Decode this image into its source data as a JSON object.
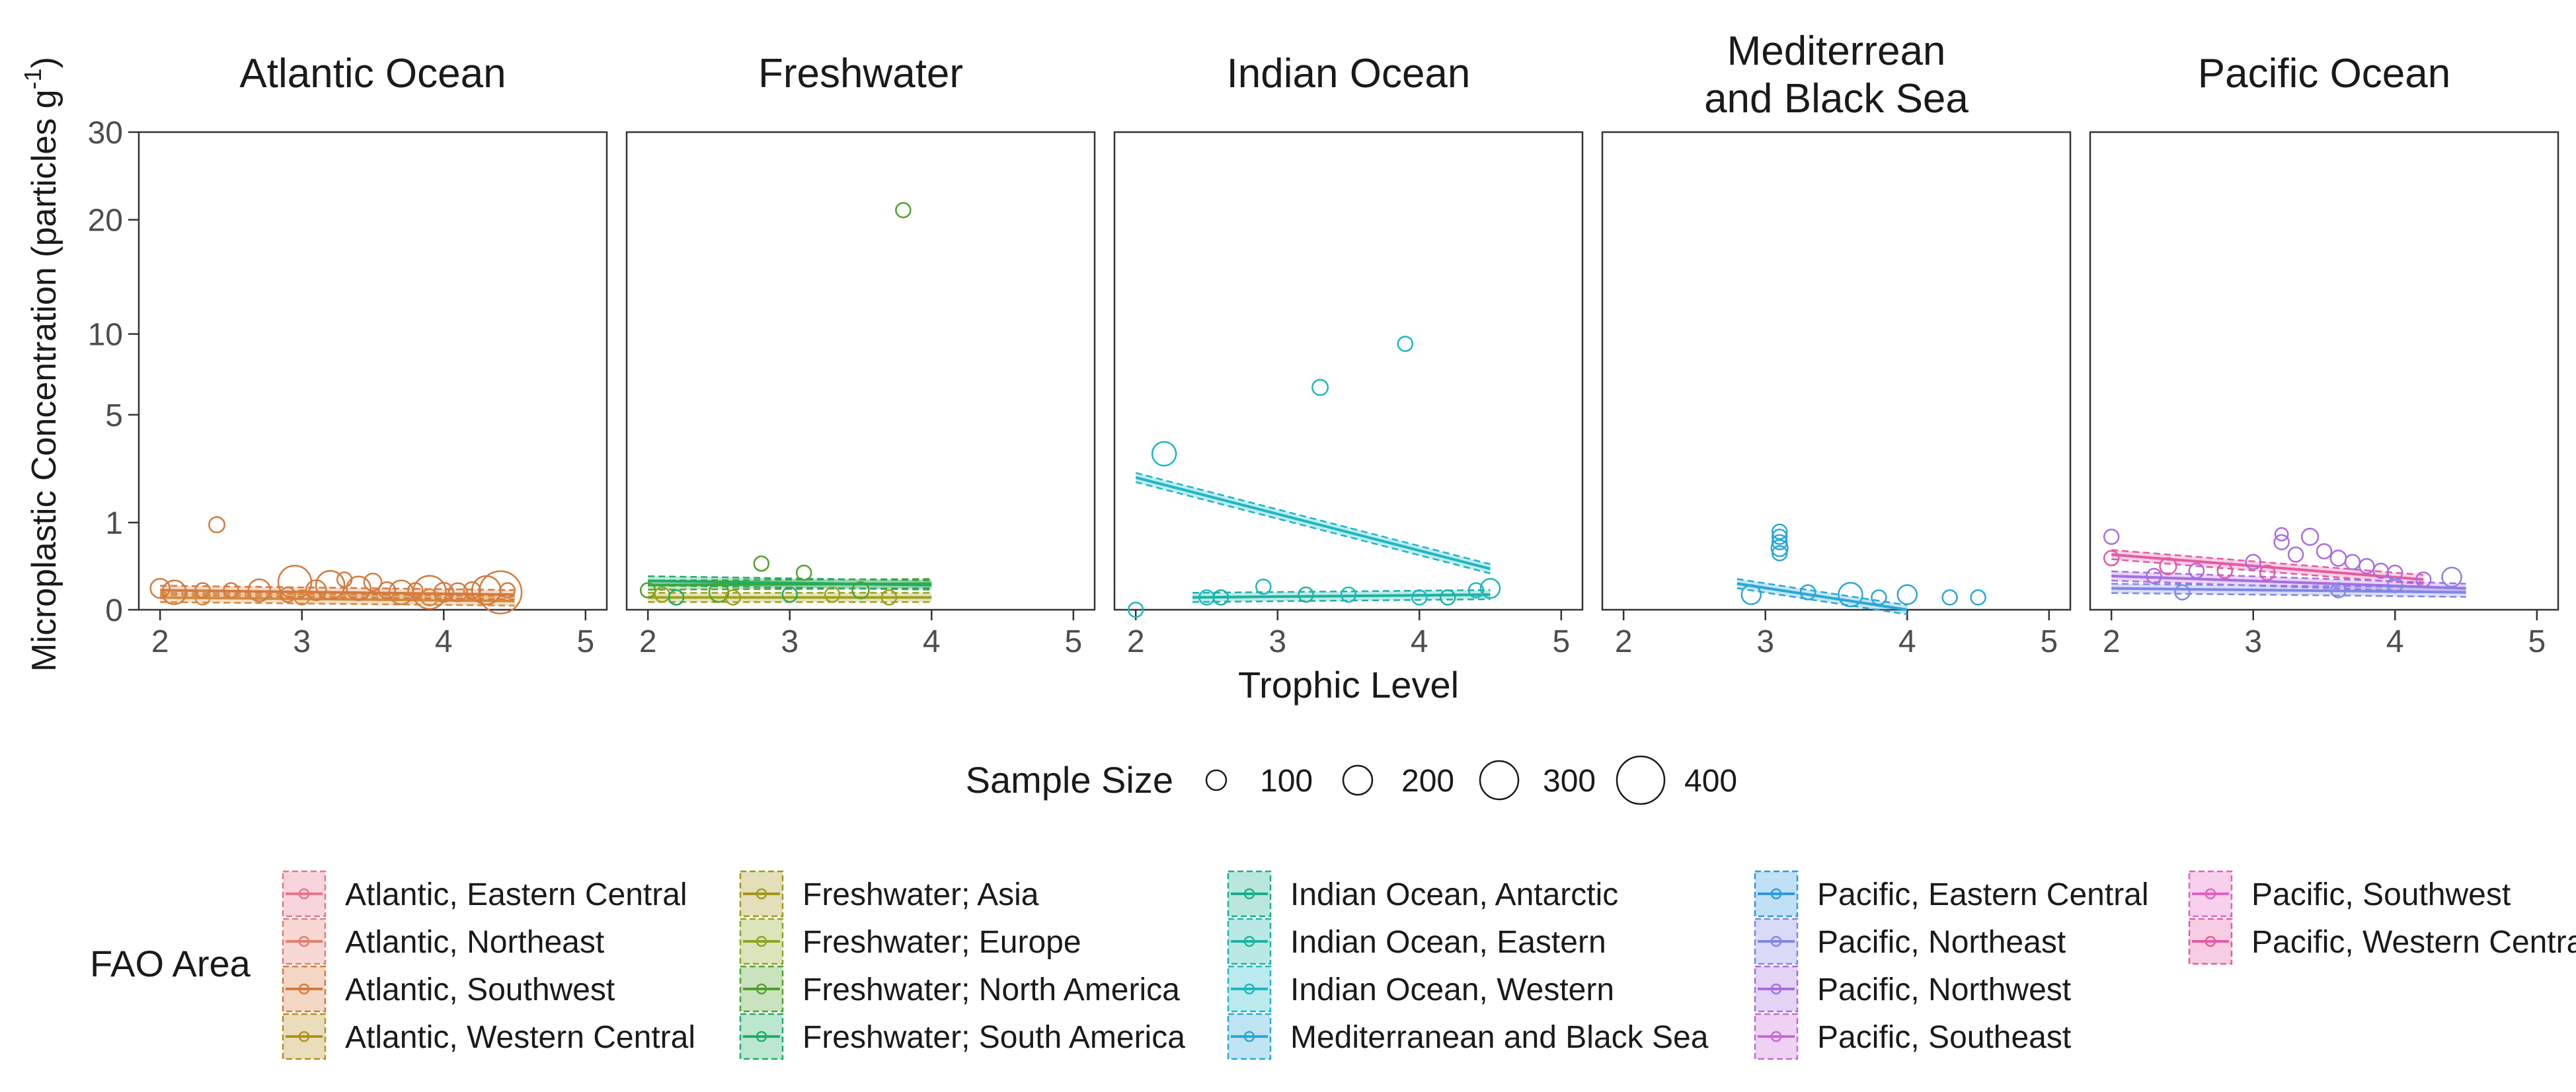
{
  "chart_data": {
    "type": "scatter",
    "facets": [
      {
        "title": "Atlantic Ocean",
        "series": [
          {
            "name": "Atlantic, Southwest",
            "color": "#d57a3c",
            "points": [
              [
                2.0,
                0.06,
                150
              ],
              [
                2.1,
                0.04,
                200
              ],
              [
                2.3,
                0.05,
                100
              ],
              [
                2.4,
                0.95,
                110
              ],
              [
                2.5,
                0.05,
                100
              ],
              [
                2.7,
                0.05,
                180
              ],
              [
                2.9,
                0.03,
                100
              ],
              [
                2.95,
                0.1,
                300
              ],
              [
                3.1,
                0.05,
                160
              ],
              [
                3.2,
                0.08,
                250
              ],
              [
                3.3,
                0.12,
                100
              ],
              [
                3.4,
                0.06,
                200
              ],
              [
                3.5,
                0.1,
                130
              ],
              [
                3.6,
                0.05,
                120
              ],
              [
                3.7,
                0.04,
                200
              ],
              [
                3.8,
                0.05,
                100
              ],
              [
                3.9,
                0.04,
                300
              ],
              [
                4.0,
                0.04,
                150
              ],
              [
                4.1,
                0.04,
                140
              ],
              [
                4.2,
                0.05,
                120
              ],
              [
                4.3,
                0.05,
                250
              ],
              [
                4.4,
                0.04,
                400
              ],
              [
                4.45,
                0.05,
                100
              ]
            ],
            "trend": [
              [
                2.0,
                0.05
              ],
              [
                4.5,
                0.03
              ]
            ]
          },
          {
            "name": "Atlantic, Northeast",
            "color": "#d4893b",
            "points": [
              [
                2.3,
                0.02,
                100
              ],
              [
                3.0,
                0.02,
                100
              ],
              [
                3.9,
                0.02,
                120
              ]
            ],
            "trend": [
              [
                2.0,
                0.02
              ],
              [
                4.5,
                0.01
              ]
            ]
          }
        ]
      },
      {
        "title": "Freshwater",
        "series": [
          {
            "name": "Freshwater; North America",
            "color": "#4fa22b",
            "points": [
              [
                2.0,
                0.05,
                100
              ],
              [
                2.8,
                0.28,
                100
              ],
              [
                3.8,
                21.0,
                100
              ],
              [
                3.1,
                0.18,
                100
              ],
              [
                2.5,
                0.04,
                150
              ],
              [
                3.5,
                0.05,
                120
              ]
            ],
            "trend": [
              [
                2.0,
                0.08
              ],
              [
                4.0,
                0.09
              ]
            ]
          },
          {
            "name": "Freshwater; Europe",
            "color": "#a0a21b",
            "points": [
              [
                2.1,
                0.03,
                100
              ],
              [
                2.6,
                0.02,
                100
              ],
              [
                3.3,
                0.03,
                100
              ],
              [
                3.7,
                0.02,
                100
              ]
            ],
            "trend": [
              [
                2.0,
                0.02
              ],
              [
                4.0,
                0.02
              ]
            ]
          },
          {
            "name": "Freshwater; South America",
            "color": "#1eae68",
            "points": [
              [
                2.2,
                0.02,
                100
              ],
              [
                3.0,
                0.03,
                100
              ]
            ],
            "trend": [
              [
                2.0,
                0.11
              ],
              [
                4.0,
                0.08
              ]
            ]
          }
        ]
      },
      {
        "title": "Indian Ocean",
        "series": [
          {
            "name": "Indian Ocean, Western",
            "color": "#1cb8c3",
            "points": [
              [
                2.0,
                0.0,
                100
              ],
              [
                2.2,
                3.2,
                200
              ],
              [
                3.3,
                6.5,
                110
              ],
              [
                3.9,
                9.3,
                100
              ],
              [
                2.5,
                0.02,
                100
              ],
              [
                2.9,
                0.07,
                100
              ],
              [
                3.5,
                0.03,
                100
              ],
              [
                4.0,
                0.02,
                100
              ],
              [
                4.5,
                0.06,
                150
              ],
              [
                4.4,
                0.05,
                100
              ]
            ],
            "trend": [
              [
                2.0,
                2.3
              ],
              [
                4.5,
                0.22
              ]
            ]
          },
          {
            "name": "Indian Ocean, Eastern",
            "color": "#1bb3a5",
            "points": [
              [
                2.6,
                0.02,
                100
              ],
              [
                3.2,
                0.03,
                100
              ],
              [
                4.2,
                0.02,
                100
              ]
            ],
            "trend": [
              [
                2.4,
                0.02
              ],
              [
                4.5,
                0.03
              ]
            ]
          }
        ]
      },
      {
        "title": "Mediterrean\nand Black Sea",
        "series": [
          {
            "name": "Mediterranean and Black Sea",
            "color": "#2aa7d7",
            "points": [
              [
                3.1,
                0.8,
                100
              ],
              [
                3.1,
                0.7,
                100
              ],
              [
                3.1,
                0.6,
                100
              ],
              [
                3.1,
                0.5,
                120
              ],
              [
                3.1,
                0.42,
                100
              ],
              [
                2.9,
                0.03,
                150
              ],
              [
                3.3,
                0.04,
                100
              ],
              [
                3.6,
                0.03,
                200
              ],
              [
                3.8,
                0.02,
                100
              ],
              [
                4.0,
                0.03,
                150
              ],
              [
                4.3,
                0.02,
                100
              ],
              [
                4.5,
                0.02,
                100
              ]
            ],
            "trend": [
              [
                2.8,
                0.09
              ],
              [
                4.0,
                0.0
              ]
            ]
          }
        ]
      },
      {
        "title": "Pacific Ocean",
        "series": [
          {
            "name": "Pacific, Western Central",
            "color": "#e55aa3",
            "points": [
              [
                2.0,
                0.35,
                100
              ],
              [
                2.4,
                0.25,
                120
              ],
              [
                2.8,
                0.2,
                100
              ],
              [
                3.1,
                0.18,
                100
              ]
            ],
            "trend": [
              [
                2.0,
                0.4
              ],
              [
                4.2,
                0.12
              ]
            ]
          },
          {
            "name": "Pacific, Northwest",
            "color": "#a86de0",
            "points": [
              [
                2.0,
                0.7,
                100
              ],
              [
                3.2,
                0.75,
                80
              ],
              [
                3.2,
                0.6,
                100
              ],
              [
                3.3,
                0.4,
                100
              ],
              [
                3.4,
                0.7,
                120
              ],
              [
                3.5,
                0.45,
                100
              ],
              [
                3.6,
                0.35,
                110
              ],
              [
                3.7,
                0.3,
                100
              ],
              [
                3.8,
                0.25,
                100
              ],
              [
                3.9,
                0.2,
                100
              ],
              [
                4.0,
                0.18,
                100
              ],
              [
                4.2,
                0.12,
                100
              ],
              [
                3.0,
                0.3,
                100
              ],
              [
                2.6,
                0.2,
                100
              ],
              [
                2.3,
                0.15,
                100
              ]
            ],
            "trend": [
              [
                2.0,
                0.15
              ],
              [
                4.5,
                0.06
              ]
            ]
          },
          {
            "name": "Pacific, Northeast",
            "color": "#7f86e6",
            "points": [
              [
                4.4,
                0.14,
                150
              ],
              [
                4.0,
                0.08,
                100
              ],
              [
                3.6,
                0.05,
                100
              ],
              [
                2.5,
                0.04,
                100
              ]
            ],
            "trend": [
              [
                2.0,
                0.06
              ],
              [
                4.5,
                0.04
              ]
            ]
          }
        ]
      }
    ],
    "y_axis": {
      "title": "Microplastic Concentration (particles g",
      "title_superscript": "-1",
      "title_close": ")",
      "ticks": [
        0,
        1,
        5,
        10,
        20,
        30
      ],
      "scale": "sqrt",
      "ylim": [
        0,
        30
      ]
    },
    "x_axis": {
      "title": "Trophic Level",
      "ticks": [
        2,
        3,
        4,
        5
      ],
      "xlim": [
        1.85,
        5.15
      ]
    },
    "size_legend": {
      "title": "Sample Size",
      "values": [
        100,
        200,
        300,
        400
      ]
    },
    "color_legend": {
      "title": "FAO Area",
      "columns": [
        [
          {
            "label": "Atlantic, Eastern Central",
            "color": "#e8748a"
          },
          {
            "label": "Atlantic, Northeast",
            "color": "#e47d6f"
          },
          {
            "label": "Atlantic, Southwest",
            "color": "#d57a3c"
          },
          {
            "label": "Atlantic, Western Central",
            "color": "#b78f1a"
          }
        ],
        [
          {
            "label": "Freshwater; Asia",
            "color": "#a3961b"
          },
          {
            "label": "Freshwater; Europe",
            "color": "#8ba521"
          },
          {
            "label": "Freshwater; North America",
            "color": "#4fa22b"
          },
          {
            "label": "Freshwater; South America",
            "color": "#1eae68"
          }
        ],
        [
          {
            "label": "Indian Ocean, Antarctic",
            "color": "#1aae8c"
          },
          {
            "label": "Indian Ocean, Eastern",
            "color": "#1bb3a5"
          },
          {
            "label": "Indian Ocean, Western",
            "color": "#1cb8c3"
          },
          {
            "label": "Mediterranean and Black Sea",
            "color": "#2aa7d7"
          }
        ],
        [
          {
            "label": "Pacific, Eastern Central",
            "color": "#2f98e0"
          },
          {
            "label": "Pacific, Northeast",
            "color": "#7f86e6"
          },
          {
            "label": "Pacific, Northwest",
            "color": "#a86de0"
          },
          {
            "label": "Pacific, Southeast",
            "color": "#c868d8"
          }
        ],
        [
          {
            "label": "Pacific, Southwest",
            "color": "#e062c0"
          },
          {
            "label": "Pacific, Western Central",
            "color": "#e55aa3"
          }
        ]
      ]
    }
  }
}
